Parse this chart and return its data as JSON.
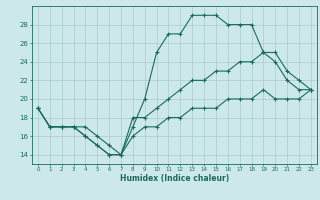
{
  "xlabel": "Humidex (Indice chaleur)",
  "bg_color": "#cce8e8",
  "grid_color": "#aacccc",
  "line_color": "#1a6b5e",
  "xlim": [
    -0.5,
    23.5
  ],
  "ylim": [
    13,
    30
  ],
  "xticks": [
    0,
    1,
    2,
    3,
    4,
    5,
    6,
    7,
    8,
    9,
    10,
    11,
    12,
    13,
    14,
    15,
    16,
    17,
    18,
    19,
    20,
    21,
    22,
    23
  ],
  "yticks": [
    14,
    16,
    18,
    20,
    22,
    24,
    26,
    28
  ],
  "line1_x": [
    0,
    1,
    2,
    3,
    4,
    5,
    6,
    7,
    8,
    9,
    10,
    11,
    12,
    13,
    14,
    15,
    16,
    17,
    18,
    19,
    20,
    21,
    22,
    23
  ],
  "line1_y": [
    19,
    17,
    17,
    17,
    16,
    15,
    14,
    14,
    17,
    20,
    25,
    27,
    27,
    29,
    29,
    29,
    28,
    28,
    28,
    25,
    24,
    22,
    21,
    21
  ],
  "line2_x": [
    0,
    1,
    2,
    3,
    4,
    5,
    6,
    7,
    8,
    9,
    10,
    11,
    12,
    13,
    14,
    15,
    16,
    17,
    18,
    19,
    20,
    21,
    22,
    23
  ],
  "line2_y": [
    19,
    17,
    17,
    17,
    16,
    15,
    14,
    14,
    18,
    18,
    19,
    20,
    21,
    22,
    22,
    23,
    23,
    24,
    24,
    25,
    25,
    23,
    22,
    21
  ],
  "line3_x": [
    0,
    1,
    2,
    3,
    4,
    5,
    6,
    7,
    8,
    9,
    10,
    11,
    12,
    13,
    14,
    15,
    16,
    17,
    18,
    19,
    20,
    21,
    22,
    23
  ],
  "line3_y": [
    19,
    17,
    17,
    17,
    17,
    16,
    15,
    14,
    16,
    17,
    17,
    18,
    18,
    19,
    19,
    19,
    20,
    20,
    20,
    21,
    20,
    20,
    20,
    21
  ]
}
